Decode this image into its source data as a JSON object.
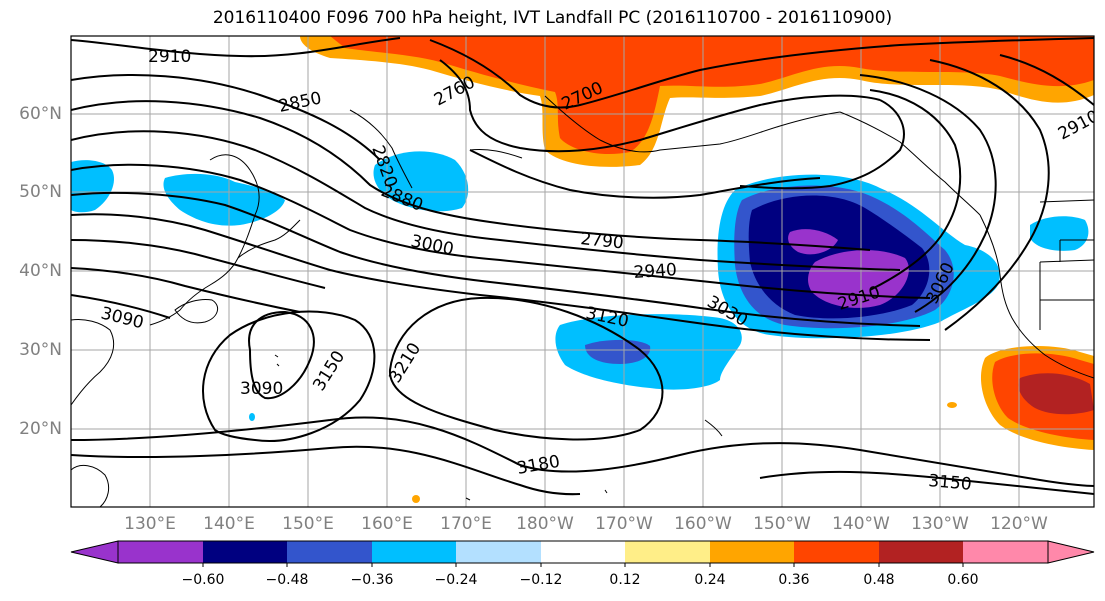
{
  "title": "2016110400 F096 700 hPa height, IVT Landfall PC (2016110700 - 2016110900)",
  "latitude_labels": [
    "60°N",
    "50°N",
    "40°N",
    "30°N",
    "20°N"
  ],
  "longitude_labels": [
    "130°E",
    "140°E",
    "150°E",
    "160°E",
    "170°E",
    "180°W",
    "170°W",
    "160°W",
    "150°W",
    "140°W",
    "130°W",
    "120°W"
  ],
  "contour_labels": [
    "2910",
    "2850",
    "2760",
    "2700",
    "2820",
    "2880",
    "3000",
    "2790",
    "2940",
    "2910",
    "3030",
    "3060",
    "3090",
    "3120",
    "3150",
    "3090",
    "3210",
    "3180",
    "3150",
    "2910"
  ],
  "colorbar": {
    "ticks": [
      "−0.60",
      "−0.48",
      "−0.36",
      "−0.24",
      "−0.12",
      "0.12",
      "0.24",
      "0.36",
      "0.48",
      "0.60"
    ],
    "colors": [
      "#9933cc",
      "#000080",
      "#3355cc",
      "#00bfff",
      "#b3e0ff",
      "#ffffff",
      "#ffee88",
      "#ffa500",
      "#ff4500",
      "#b22222",
      "#ff88aa"
    ]
  },
  "shading_colors": {
    "purple": "#9933cc",
    "navy": "#000080",
    "blue": "#3355cc",
    "deepskyblue": "#00bfff",
    "orange": "#ffa500",
    "orangered": "#ff4500",
    "darkred": "#b22222"
  }
}
